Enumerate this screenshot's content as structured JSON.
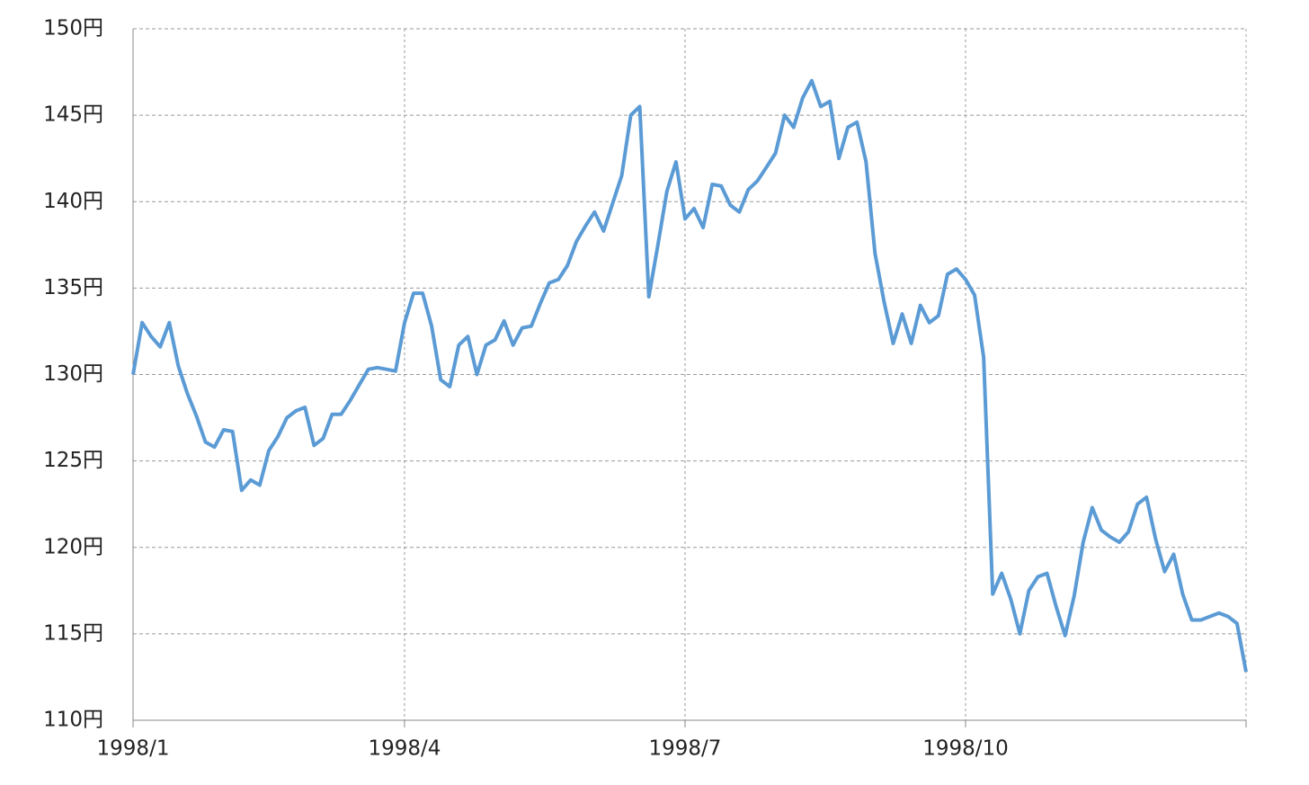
{
  "chart_data": {
    "type": "line",
    "categories": [
      "1998/1",
      null,
      null,
      null,
      null,
      null,
      null,
      null,
      null,
      null,
      null,
      null,
      null,
      null,
      null,
      null,
      null,
      null,
      null,
      null,
      null,
      null,
      null,
      null,
      null,
      null,
      null,
      null,
      null,
      null,
      "1998/4",
      null,
      null,
      null,
      null,
      null,
      null,
      null,
      null,
      null,
      null,
      null,
      null,
      null,
      null,
      null,
      null,
      null,
      null,
      null,
      null,
      null,
      null,
      null,
      null,
      null,
      null,
      null,
      null,
      null,
      null,
      "1998/7",
      null,
      null,
      null,
      null,
      null,
      null,
      null,
      null,
      null,
      null,
      null,
      null,
      null,
      null,
      null,
      null,
      null,
      null,
      null,
      null,
      null,
      null,
      null,
      null,
      null,
      null,
      null,
      null,
      null,
      null,
      "1998/10",
      null,
      null,
      null,
      null,
      null,
      null,
      null,
      null,
      null,
      null,
      null,
      null,
      null,
      null,
      null,
      null,
      null,
      null,
      null,
      null,
      null,
      null,
      null,
      null,
      null,
      null,
      null,
      null,
      null,
      null,
      null
    ],
    "series": [
      {
        "color": "#5b9bd5",
        "values": [
          130.0,
          133.0,
          132.2,
          131.6,
          133.0,
          130.5,
          128.9,
          127.6,
          126.1,
          125.8,
          126.8,
          126.7,
          123.3,
          123.9,
          123.6,
          125.6,
          126.4,
          127.5,
          127.9,
          128.1,
          125.9,
          126.3,
          127.7,
          127.7,
          128.5,
          129.4,
          130.3,
          130.4,
          130.3,
          130.2,
          133.0,
          134.7,
          134.7,
          132.8,
          129.7,
          129.3,
          131.7,
          132.2,
          130.0,
          131.7,
          132.0,
          133.1,
          131.7,
          132.7,
          132.8,
          134.1,
          135.3,
          135.5,
          136.3,
          137.7,
          138.6,
          139.4,
          138.3,
          139.9,
          141.5,
          145.0,
          145.5,
          134.5,
          137.5,
          140.6,
          142.3,
          139.0,
          139.6,
          138.5,
          141.0,
          140.9,
          139.8,
          139.4,
          140.7,
          141.2,
          142.0,
          142.8,
          145.0,
          144.3,
          146.0,
          147.0,
          145.5,
          145.8,
          142.5,
          144.3,
          144.6,
          142.3,
          137.0,
          134.2,
          131.8,
          133.5,
          131.8,
          134.0,
          133.0,
          133.4,
          135.8,
          136.1,
          135.5,
          134.6,
          131.0,
          117.3,
          118.5,
          117.0,
          115.0,
          117.5,
          118.3,
          118.5,
          116.6,
          114.9,
          117.2,
          120.3,
          122.3,
          121.0,
          120.6,
          120.3,
          120.9,
          122.5,
          122.9,
          120.5,
          118.6,
          119.6,
          117.3,
          115.8,
          115.8,
          116.0,
          116.2,
          116.0,
          115.6,
          112.8
        ]
      }
    ],
    "ylim": [
      110,
      150
    ],
    "yticks": [
      {
        "value": 110,
        "label": "110円"
      },
      {
        "value": 115,
        "label": "115円"
      },
      {
        "value": 120,
        "label": "120円"
      },
      {
        "value": 125,
        "label": "125円"
      },
      {
        "value": 130,
        "label": "130円"
      },
      {
        "value": 135,
        "label": "135円"
      },
      {
        "value": 140,
        "label": "140円"
      },
      {
        "value": 145,
        "label": "145円"
      },
      {
        "value": 150,
        "label": "150円"
      }
    ],
    "grid": true
  }
}
